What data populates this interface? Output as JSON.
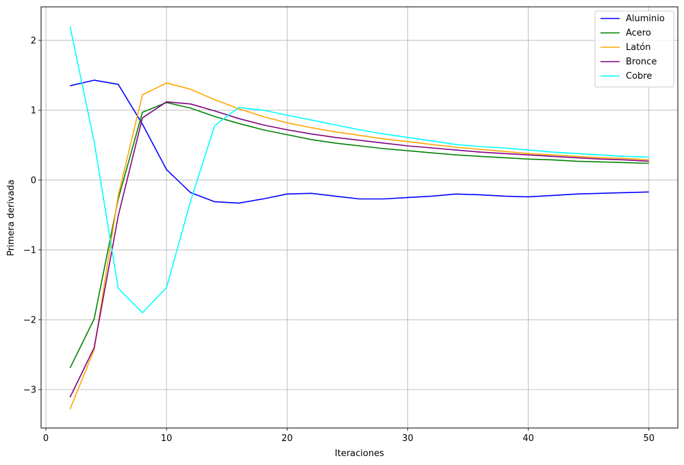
{
  "chart_data": {
    "type": "line",
    "title": "",
    "xlabel": "Iteraciones",
    "ylabel": "Primera derivada",
    "xlim": [
      -0.4,
      52.4
    ],
    "ylim": [
      -3.55,
      2.48
    ],
    "xticks": [
      0,
      10,
      20,
      30,
      40,
      50
    ],
    "yticks": [
      -3,
      -2,
      -1,
      0,
      1,
      2
    ],
    "xtick_labels": [
      "0",
      "10",
      "20",
      "30",
      "40",
      "50"
    ],
    "ytick_labels": [
      "−3",
      "−2",
      "−1",
      "0",
      "1",
      "2"
    ],
    "grid": true,
    "legend": "top-right",
    "x": [
      2,
      4,
      6,
      8,
      10,
      12,
      14,
      16,
      18,
      20,
      22,
      24,
      26,
      28,
      30,
      32,
      34,
      36,
      38,
      40,
      42,
      44,
      46,
      48,
      50
    ],
    "series": [
      {
        "name": "Aluminio",
        "color": "#0000ff",
        "values": [
          1.35,
          1.43,
          1.37,
          0.8,
          0.15,
          -0.18,
          -0.31,
          -0.33,
          -0.27,
          -0.2,
          -0.19,
          -0.23,
          -0.27,
          -0.27,
          -0.25,
          -0.23,
          -0.2,
          -0.21,
          -0.23,
          -0.24,
          -0.22,
          -0.2,
          -0.19,
          -0.18,
          -0.17
        ]
      },
      {
        "name": "Acero",
        "color": "#008000",
        "values": [
          -2.69,
          -1.99,
          -0.27,
          0.97,
          1.11,
          1.03,
          0.91,
          0.81,
          0.72,
          0.65,
          0.58,
          0.53,
          0.49,
          0.45,
          0.42,
          0.39,
          0.36,
          0.34,
          0.32,
          0.3,
          0.29,
          0.27,
          0.26,
          0.25,
          0.24
        ]
      },
      {
        "name": "Latón",
        "color": "#ffa500",
        "values": [
          -3.28,
          -2.43,
          -0.22,
          1.22,
          1.39,
          1.3,
          1.15,
          1.02,
          0.91,
          0.82,
          0.75,
          0.69,
          0.64,
          0.59,
          0.55,
          0.51,
          0.47,
          0.44,
          0.41,
          0.38,
          0.36,
          0.34,
          0.32,
          0.31,
          0.29
        ]
      },
      {
        "name": "Bronce",
        "color": "#800080",
        "values": [
          -3.11,
          -2.4,
          -0.51,
          0.89,
          1.12,
          1.09,
          0.99,
          0.88,
          0.79,
          0.72,
          0.66,
          0.61,
          0.57,
          0.53,
          0.49,
          0.46,
          0.43,
          0.4,
          0.38,
          0.36,
          0.34,
          0.32,
          0.3,
          0.29,
          0.27
        ]
      },
      {
        "name": "Cobre",
        "color": "#00ffff",
        "values": [
          2.2,
          0.55,
          -1.55,
          -1.9,
          -1.54,
          -0.3,
          0.78,
          1.04,
          1.0,
          0.93,
          0.86,
          0.79,
          0.72,
          0.66,
          0.61,
          0.56,
          0.51,
          0.48,
          0.46,
          0.43,
          0.4,
          0.38,
          0.36,
          0.34,
          0.33
        ]
      }
    ]
  }
}
